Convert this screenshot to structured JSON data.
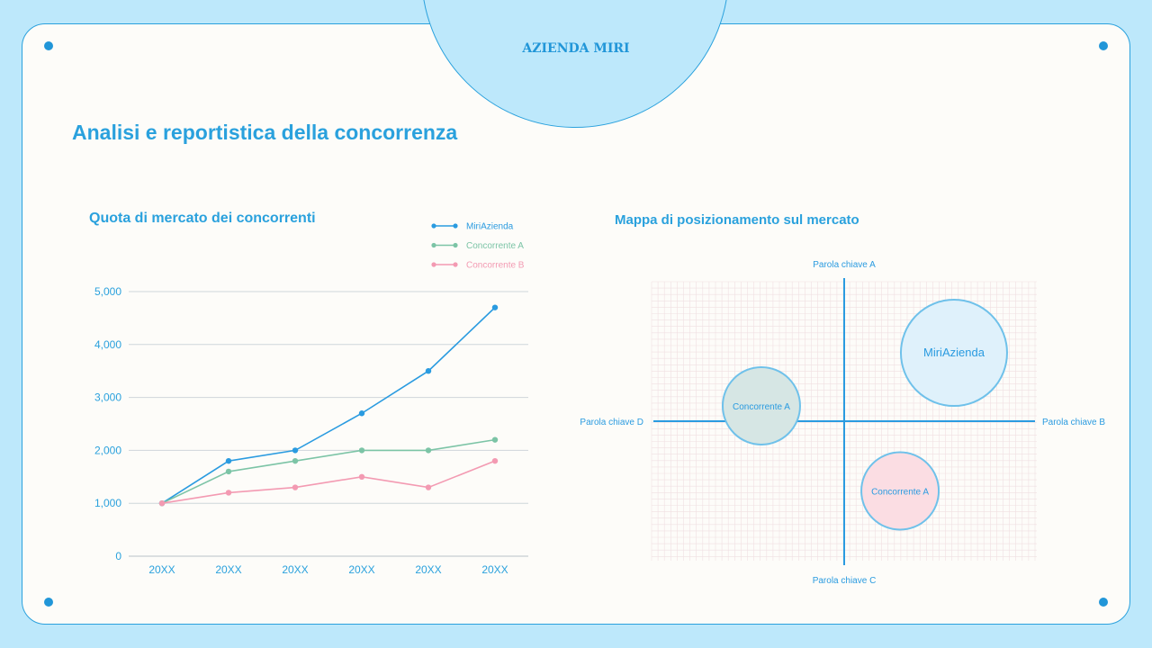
{
  "brand": "AZIENDA MIRI",
  "page_title": "Analisi e reportistica della concorrenza",
  "colors": {
    "accent": "#2196d8",
    "background": "#bde8fb",
    "card": "#fdfcf9",
    "series_miri": "#2a9be0",
    "series_a": "#7cc4a6",
    "series_b": "#f39ab2"
  },
  "chart_data": [
    {
      "type": "line",
      "title": "Quota di mercato dei concorrenti",
      "categories": [
        "20XX",
        "20XX",
        "20XX",
        "20XX",
        "20XX",
        "20XX"
      ],
      "ylim": [
        0,
        5000
      ],
      "yticks": [
        "0",
        "1,000",
        "2,000",
        "3,000",
        "4,000",
        "5,000"
      ],
      "grid": true,
      "legend_position": "top-right",
      "series": [
        {
          "name": "MiriAzienda",
          "color": "#2a9be0",
          "values": [
            1000,
            1800,
            2000,
            2700,
            3500,
            4700
          ]
        },
        {
          "name": "Concorrente A",
          "color": "#7cc4a6",
          "values": [
            1000,
            1600,
            1800,
            2000,
            2000,
            2200
          ]
        },
        {
          "name": "Concorrente B",
          "color": "#f39ab2",
          "values": [
            1000,
            1200,
            1300,
            1500,
            1300,
            1800
          ]
        }
      ]
    },
    {
      "type": "scatter",
      "title": "Mappa di posizionamento sul mercato",
      "axis_labels": {
        "top": "Parola chiave A",
        "right": "Parola chiave B",
        "bottom": "Parola chiave C",
        "left": "Parola chiave D"
      },
      "bubbles": [
        {
          "name": "MiriAzienda",
          "x": 0.57,
          "y": 0.49,
          "fill": "#dff1fb"
        },
        {
          "name": "Concorrente A",
          "x": -0.43,
          "y": 0.11,
          "fill": "#d6e6e4"
        },
        {
          "name": "Concorrente A",
          "x": 0.29,
          "y": -0.5,
          "fill": "#fbdde3"
        }
      ]
    }
  ]
}
